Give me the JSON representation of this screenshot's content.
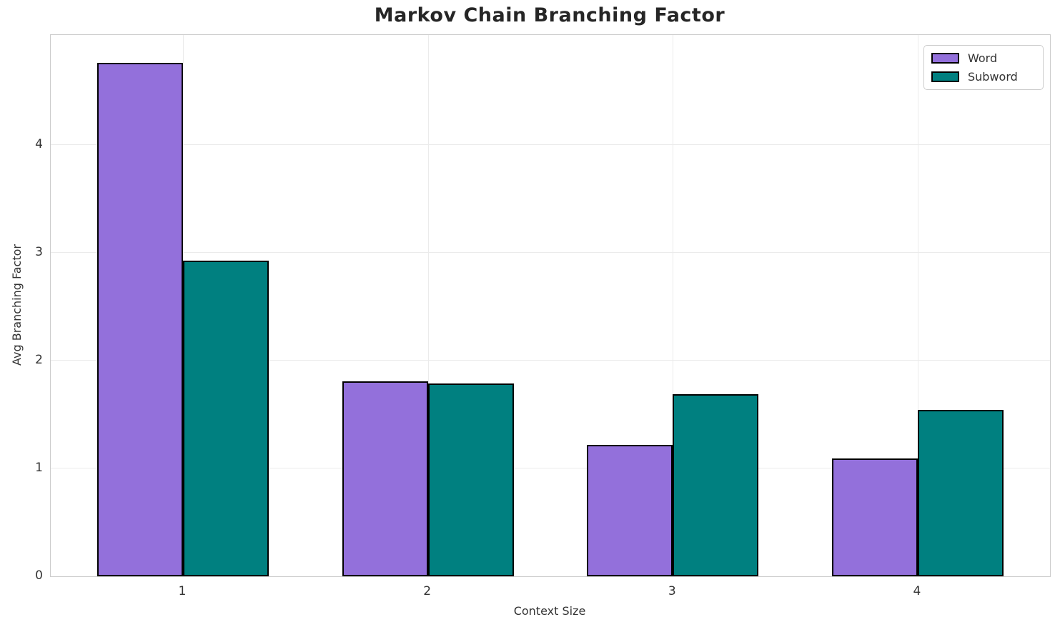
{
  "chart_data": {
    "type": "bar",
    "title": "Markov Chain Branching Factor",
    "xlabel": "Context Size",
    "ylabel": "Avg Branching Factor",
    "categories": [
      "1",
      "2",
      "3",
      "4"
    ],
    "series": [
      {
        "name": "Word",
        "color": "#9370DB",
        "values": [
          4.76,
          1.81,
          1.22,
          1.09
        ]
      },
      {
        "name": "Subword",
        "color": "#008080",
        "values": [
          2.93,
          1.79,
          1.69,
          1.54
        ]
      }
    ],
    "yticks": [
      "0",
      "1",
      "2",
      "3",
      "4"
    ],
    "ylim": [
      0,
      5.02
    ],
    "xlim": [
      0.46,
      4.54
    ],
    "bar_width": 0.35,
    "bar_edge_color": "#000000",
    "grid": true,
    "grid_color": "#ebebeb",
    "spine_color": "#cccccc",
    "text_color": "#333333",
    "title_color": "#262626",
    "legend_position": "upper-right"
  }
}
